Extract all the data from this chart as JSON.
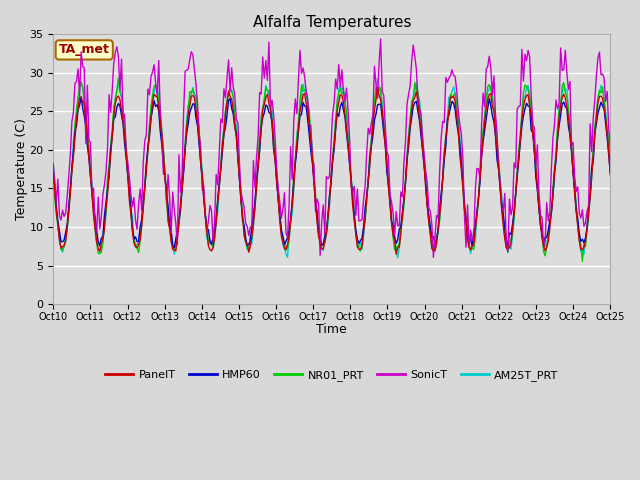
{
  "title": "Alfalfa Temperatures",
  "xlabel": "Time",
  "ylabel": "Temperature (C)",
  "ylim": [
    0,
    35
  ],
  "yticks": [
    0,
    5,
    10,
    15,
    20,
    25,
    30,
    35
  ],
  "fig_bg_color": "#d8d8d8",
  "plot_bg": "#dcdcdc",
  "annotation_text": "TA_met",
  "annotation_bg": "#ffffcc",
  "annotation_border": "#cc6600",
  "series_colors": {
    "PanelT": "#cc0000",
    "HMP60": "#0000cc",
    "NR01_PRT": "#00cc00",
    "SonicT": "#cc00cc",
    "AM25T_PRT": "#00cccc"
  },
  "x_start": 10,
  "x_end": 25,
  "num_points": 360,
  "x_tick_labels": [
    "Oct 10",
    "Oct 11",
    "Oct 12",
    "Oct 13",
    "Oct 14",
    "Oct 15",
    "Oct 16",
    "Oct 17",
    "Oct 18",
    "Oct 19",
    "Oct 20",
    "Oct 21",
    "Oct 22",
    "Oct 23",
    "Oct 24",
    "Oct 25"
  ],
  "x_tick_positions": [
    10,
    11,
    12,
    13,
    14,
    15,
    16,
    17,
    18,
    19,
    20,
    21,
    22,
    23,
    24,
    25
  ]
}
